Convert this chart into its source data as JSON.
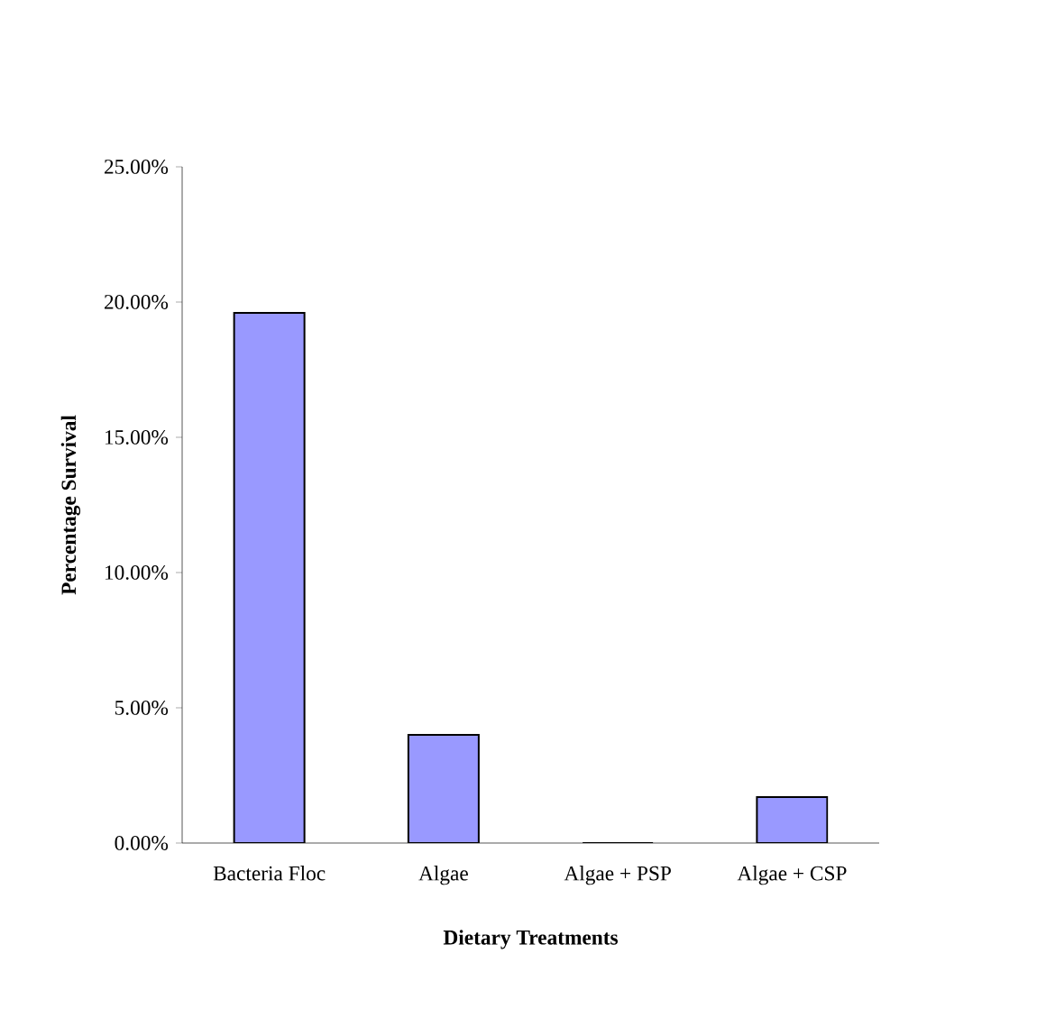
{
  "chart_data": {
    "type": "bar",
    "xlabel": "Dietary Treatments",
    "ylabel": "Percentage Survival",
    "categories": [
      "Bacteria Floc",
      "Algae",
      "Algae + PSP",
      "Algae + CSP"
    ],
    "values": [
      19.6,
      4.0,
      0,
      1.7
    ],
    "color": "#9999ff",
    "ylim": [
      0,
      25
    ],
    "yticks": [
      {
        "value": 0,
        "label": "0.00%"
      },
      {
        "value": 5,
        "label": "5.00%"
      },
      {
        "value": 10,
        "label": "10.00%"
      },
      {
        "value": 15,
        "label": "15.00%"
      },
      {
        "value": 20,
        "label": "20.00%"
      },
      {
        "value": 25,
        "label": "25.00%"
      }
    ]
  }
}
